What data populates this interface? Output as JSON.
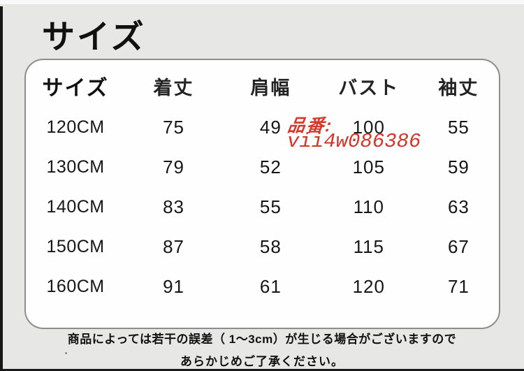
{
  "page": {
    "title": "サイズ"
  },
  "table": {
    "headers": [
      "サイズ",
      "着丈",
      "肩幅",
      "バスト",
      "袖丈"
    ],
    "rows": [
      {
        "size": "120CM",
        "values": [
          "75",
          "49",
          "100",
          "55"
        ]
      },
      {
        "size": "130CM",
        "values": [
          "79",
          "52",
          "105",
          "59"
        ]
      },
      {
        "size": "140CM",
        "values": [
          "83",
          "55",
          "110",
          "63"
        ]
      },
      {
        "size": "150CM",
        "values": [
          "87",
          "58",
          "115",
          "67"
        ]
      },
      {
        "size": "160CM",
        "values": [
          "91",
          "61",
          "120",
          "71"
        ]
      }
    ]
  },
  "watermark": {
    "label": "品番:",
    "code": "vii4w086386",
    "color": "#d3362b"
  },
  "notice": {
    "line1": "商品によっては若干の誤差（ 1〜3cm）が生じる場合がございますので",
    "line2": "あらかじめご了承ください。"
  },
  "colors": {
    "background": "#e7e7e6",
    "card": "#fefefe",
    "card_border": "#8d8d8d",
    "text": "#151515",
    "watermark_red": "#d3362b",
    "edge_dark": "#181818"
  },
  "chart_data": {
    "type": "table",
    "title": "サイズ",
    "columns": [
      "サイズ",
      "着丈",
      "肩幅",
      "バスト",
      "袖丈"
    ],
    "rows": [
      [
        "120CM",
        75,
        49,
        100,
        55
      ],
      [
        "130CM",
        79,
        52,
        105,
        59
      ],
      [
        "140CM",
        83,
        55,
        110,
        63
      ],
      [
        "150CM",
        87,
        58,
        115,
        67
      ],
      [
        "160CM",
        91,
        61,
        120,
        71
      ]
    ],
    "units": "cm",
    "annotations": [
      "品番: vii4w086386",
      "商品によっては若干の誤差（ 1〜3cm）が生じる場合がございますので",
      "あらかじめご了承ください。"
    ]
  }
}
